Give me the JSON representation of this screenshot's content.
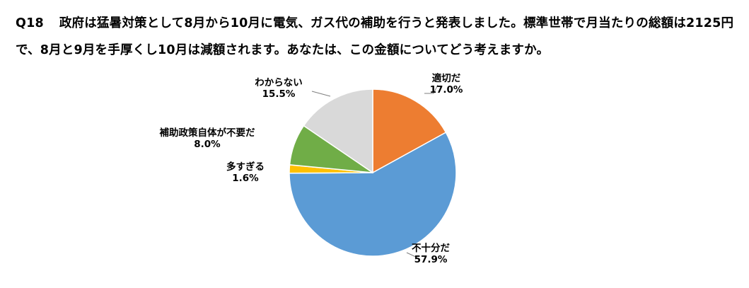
{
  "question": {
    "number": "Q18",
    "text": "政府は猛暑対策として8月から10月に電気、ガス代の補助を行うと発表しました。標準世帯で月当たりの総額は2125円で、8月と9月を手厚くし10月は減額されます。あなたは、この金額についてどう考えますか。"
  },
  "chart_data": {
    "type": "pie",
    "title": "",
    "start_angle_deg": 0,
    "direction": "clockwise",
    "slices": [
      {
        "label": "適切だ",
        "value": 17.0,
        "display": "17.0%",
        "color": "#ED7D31"
      },
      {
        "label": "不十分だ",
        "value": 57.9,
        "display": "57.9%",
        "color": "#5B9BD5"
      },
      {
        "label": "多すぎる",
        "value": 1.6,
        "display": "1.6%",
        "color": "#FFC000"
      },
      {
        "label": "補助政策自体が不要だ",
        "value": 8.0,
        "display": "8.0%",
        "color": "#70AD47"
      },
      {
        "label": "わからない",
        "value": 15.5,
        "display": "15.5%",
        "color": "#D9D9D9"
      }
    ]
  }
}
